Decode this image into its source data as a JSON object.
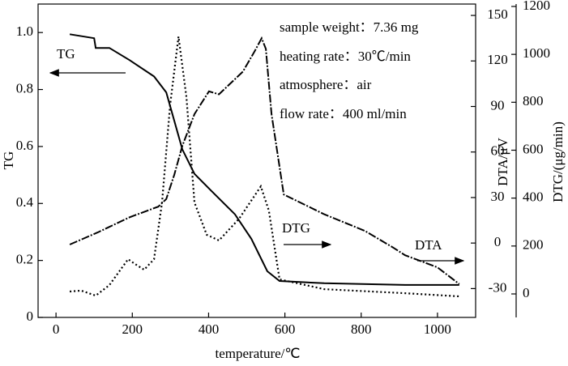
{
  "chart_data": {
    "type": "line",
    "xlabel": "temperature/℃",
    "ylabel": "TG",
    "y2label": "DTA/μV",
    "y3label": "DTG/(μg/min)",
    "annotations": [
      "sample weight：7.36 mg",
      "heating rate：30℃/min",
      "atmosphere：air",
      "flow rate：400 ml/min"
    ],
    "xlim": [
      -47,
      1100
    ],
    "xticks": [
      0,
      200,
      400,
      600,
      800,
      1000
    ],
    "ylim": [
      0,
      1.1
    ],
    "yticks": [
      0,
      0.2,
      0.4,
      0.6,
      0.8,
      {
        "value": 1.0,
        "label": "1.0"
      }
    ],
    "y2lim": [
      -49,
      157.5
    ],
    "y2ticks": [
      -30,
      0,
      30,
      60,
      90,
      120,
      150
    ],
    "y3lim": [
      -98,
      1210
    ],
    "y3ticks": [
      0,
      200,
      400,
      600,
      800,
      1000,
      1200
    ],
    "series": [
      {
        "name": "TG",
        "color": "#000000",
        "style": "solid",
        "axis": "y",
        "x": [
          36,
          100,
          104,
          140,
          193,
          257,
          289,
          310,
          331,
          363,
          405,
          469,
          512,
          554,
          586,
          703,
          915,
          1057
        ],
        "values": [
          0.994,
          0.98,
          0.946,
          0.946,
          0.903,
          0.846,
          0.79,
          0.69,
          0.59,
          0.504,
          0.447,
          0.362,
          0.276,
          0.162,
          0.128,
          0.12,
          0.114,
          0.114
        ]
      },
      {
        "name": "DTG",
        "color": "#000000",
        "style": "dotted",
        "axis": "y3",
        "x": [
          36,
          66,
          104,
          140,
          189,
          204,
          231,
          257,
          278,
          299,
          321,
          342,
          363,
          395,
          427,
          480,
          537,
          558,
          586,
          703,
          915,
          1057
        ],
        "values": [
          10,
          14,
          -7,
          37,
          145,
          128,
          101,
          145,
          382,
          787,
          1074,
          821,
          382,
          247,
          223,
          314,
          449,
          348,
          61,
          20,
          3,
          -10
        ]
      },
      {
        "name": "DTA",
        "color": "#000000",
        "style": "dashdot",
        "axis": "y2",
        "x": [
          36,
          109,
          193,
          268,
          289,
          310,
          331,
          363,
          401,
          427,
          490,
          522,
          539,
          550,
          565,
          597,
          703,
          810,
          884,
          915,
          1000,
          1057
        ],
        "values": [
          -1,
          7,
          17,
          24,
          29,
          45,
          64,
          85,
          100,
          98,
          113,
          127,
          135,
          128,
          85,
          32,
          19,
          8,
          -3,
          -8,
          -16,
          -27
        ]
      }
    ]
  }
}
